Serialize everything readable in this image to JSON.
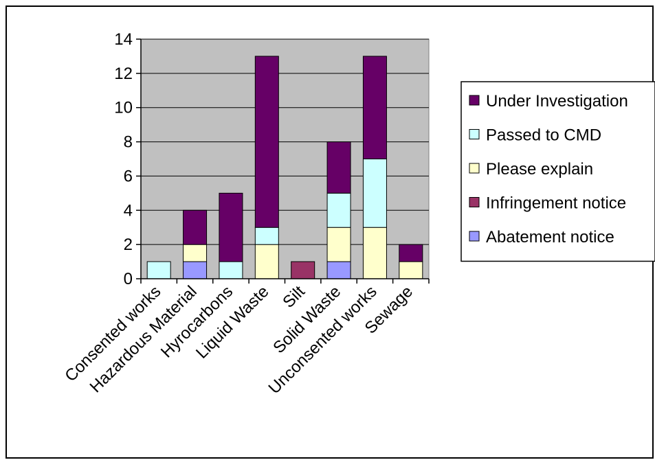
{
  "chart_data": {
    "type": "bar",
    "stacked": true,
    "categories": [
      "Consented works",
      "Hazardous Material",
      "Hyrocarbons",
      "Liquid Waste",
      "Silt",
      "Solid Waste",
      "Unconsented works",
      "Sewage"
    ],
    "series": [
      {
        "name": "Abatement notice",
        "color": "#9999ff",
        "values": [
          0,
          1,
          0,
          0,
          0,
          1,
          0,
          0
        ]
      },
      {
        "name": "Infringement notice",
        "color": "#993366",
        "values": [
          0,
          0,
          0,
          0,
          1,
          0,
          0,
          0
        ]
      },
      {
        "name": "Please explain",
        "color": "#ffffcc",
        "values": [
          0,
          1,
          0,
          2,
          0,
          2,
          3,
          1
        ]
      },
      {
        "name": "Passed to CMD",
        "color": "#ccffff",
        "values": [
          1,
          0,
          1,
          1,
          0,
          2,
          4,
          0
        ]
      },
      {
        "name": "Under Investigation",
        "color": "#660066",
        "values": [
          0,
          2,
          4,
          10,
          0,
          3,
          6,
          1
        ]
      }
    ],
    "legend_order": [
      "Under Investigation",
      "Passed to CMD",
      "Please explain",
      "Infringement notice",
      "Abatement notice"
    ],
    "yticks": [
      0,
      2,
      4,
      6,
      8,
      10,
      12,
      14
    ],
    "ylim": [
      0,
      14
    ],
    "legend_position": "right",
    "plot_background": "#c0c0c0",
    "grid": true
  }
}
